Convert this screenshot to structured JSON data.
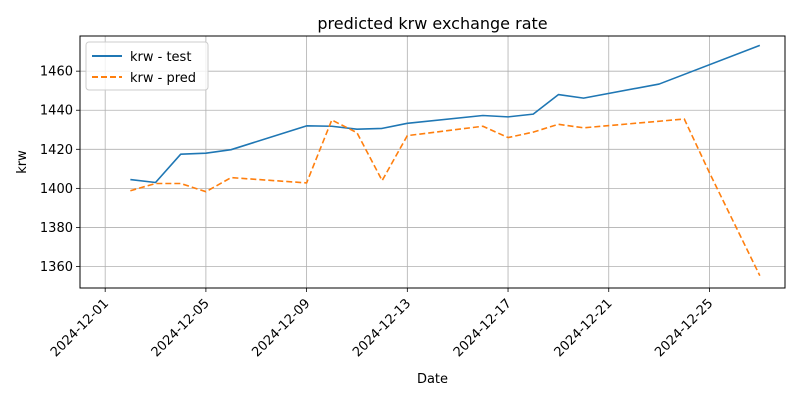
{
  "chart_data": {
    "type": "line",
    "title": "predicted krw exchange rate",
    "xlabel": "Date",
    "ylabel": "krw",
    "xlim": [
      "2024-11-30",
      "2024-12-28"
    ],
    "ylim": [
      1349,
      1478
    ],
    "x_ticks": [
      "2024-12-01",
      "2024-12-05",
      "2024-12-09",
      "2024-12-13",
      "2024-12-17",
      "2024-12-21",
      "2024-12-25"
    ],
    "y_ticks": [
      1360,
      1380,
      1400,
      1420,
      1440,
      1460
    ],
    "grid": true,
    "legend": "top-left",
    "series": [
      {
        "name": "krw - test",
        "color": "#1f77b4",
        "style": "solid",
        "x": [
          "2024-12-02",
          "2024-12-03",
          "2024-12-04",
          "2024-12-05",
          "2024-12-06",
          "2024-12-09",
          "2024-12-10",
          "2024-12-11",
          "2024-12-12",
          "2024-12-13",
          "2024-12-16",
          "2024-12-17",
          "2024-12-18",
          "2024-12-19",
          "2024-12-20",
          "2024-12-23",
          "2024-12-27"
        ],
        "values": [
          1404.5,
          1403.0,
          1417.5,
          1418.0,
          1419.8,
          1432.0,
          1431.8,
          1430.3,
          1430.7,
          1433.3,
          1437.3,
          1436.6,
          1438.0,
          1448.0,
          1446.2,
          1453.4,
          1473.2
        ]
      },
      {
        "name": "krw - pred",
        "color": "#ff7f0e",
        "style": "dashed",
        "x": [
          "2024-12-02",
          "2024-12-03",
          "2024-12-04",
          "2024-12-05",
          "2024-12-06",
          "2024-12-09",
          "2024-12-10",
          "2024-12-11",
          "2024-12-12",
          "2024-12-13",
          "2024-12-16",
          "2024-12-17",
          "2024-12-18",
          "2024-12-19",
          "2024-12-20",
          "2024-12-24",
          "2024-12-25",
          "2024-12-27"
        ],
        "values": [
          1398.8,
          1402.5,
          1402.5,
          1398.3,
          1405.5,
          1402.8,
          1435.0,
          1428.5,
          1404.0,
          1427.0,
          1431.8,
          1426.0,
          1428.8,
          1432.8,
          1431.0,
          1435.5,
          1408.0,
          1355.3
        ]
      }
    ]
  }
}
